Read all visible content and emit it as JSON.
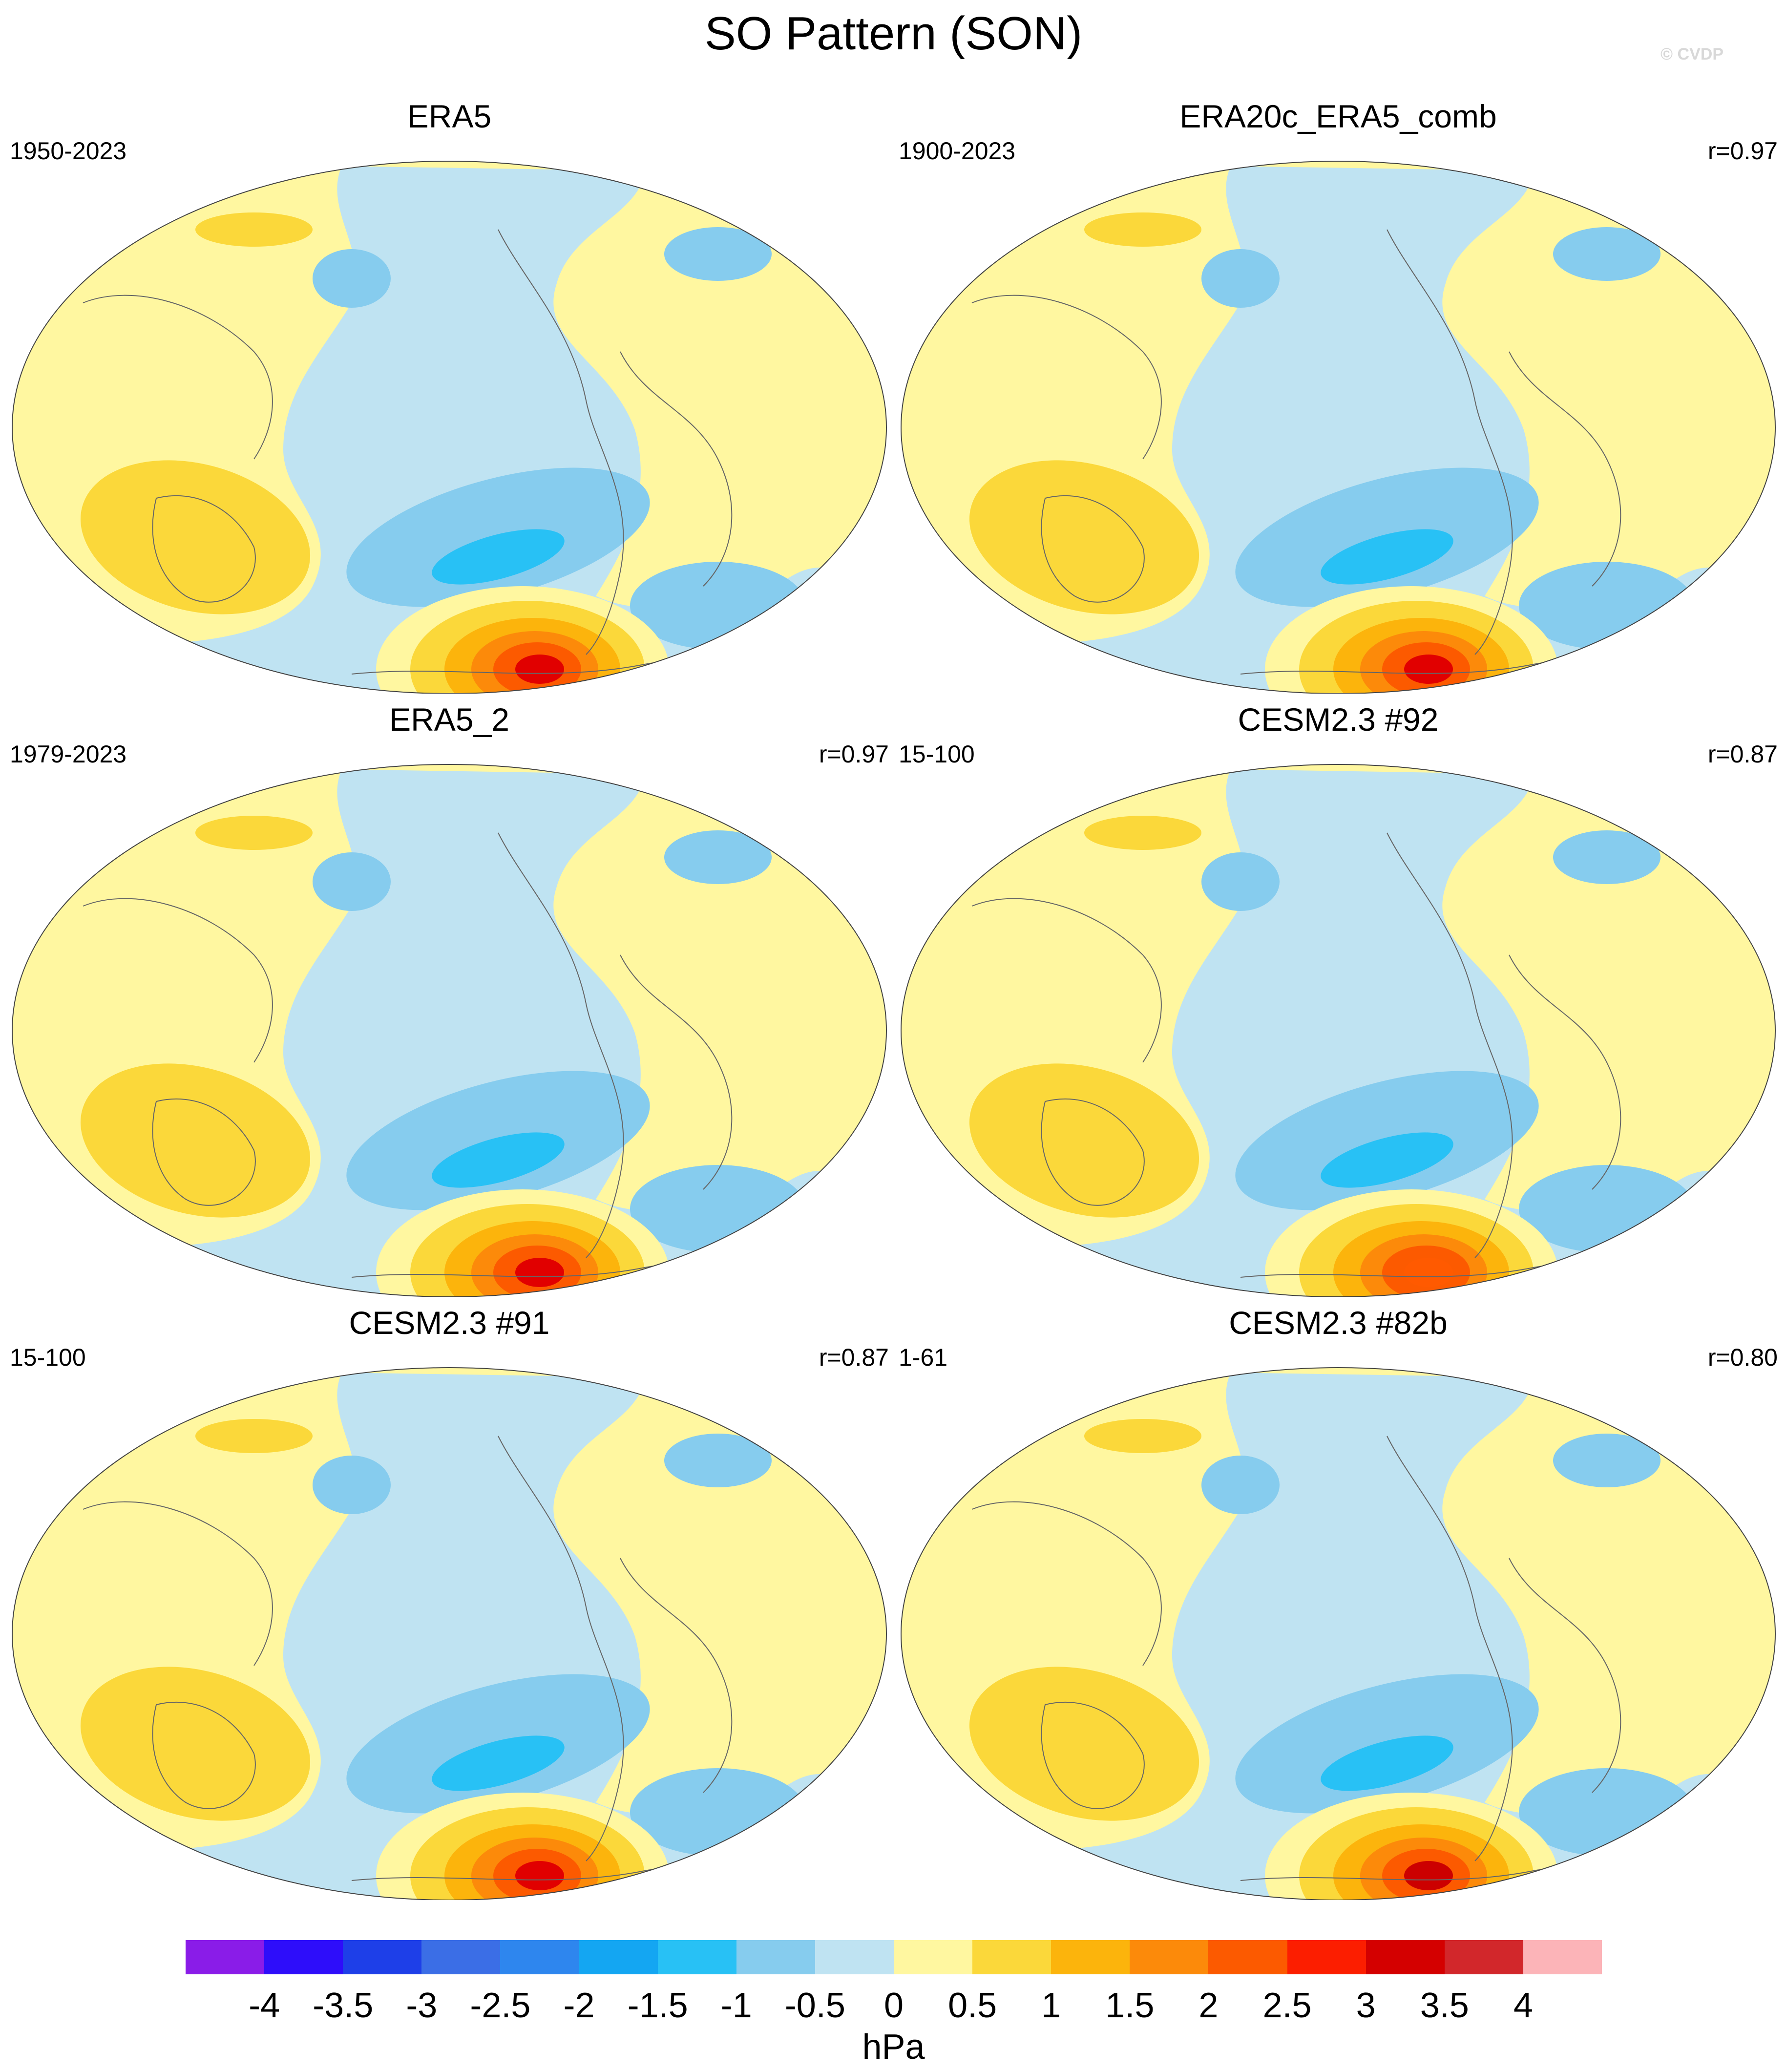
{
  "title": "SO Pattern (SON)",
  "watermark": "© CVDP",
  "panels": [
    {
      "name": "ERA5",
      "years": "1950-2023",
      "corr": "",
      "max_color": "#e10000"
    },
    {
      "name": "ERA20c_ERA5_comb",
      "years": "1900-2023",
      "corr": "r=0.97",
      "max_color": "#e10000"
    },
    {
      "name": "ERA5_2",
      "years": "1979-2023",
      "corr": "r=0.97",
      "max_color": "#e10000"
    },
    {
      "name": "CESM2.3 #92",
      "years": "15-100",
      "corr": "r=0.87",
      "max_color": "#ff5a00"
    },
    {
      "name": "CESM2.3 #91",
      "years": "15-100",
      "corr": "r=0.87",
      "max_color": "#e10000"
    },
    {
      "name": "CESM2.3 #82b",
      "years": "1-61",
      "corr": "r=0.80",
      "max_color": "#cc0000"
    }
  ],
  "colorbar": {
    "unit": "hPa",
    "colors": [
      "#8a1ce8",
      "#2e0dfa",
      "#1e3fe8",
      "#3b6ee6",
      "#2e86ee",
      "#14a6f2",
      "#28c1f5",
      "#86ccee",
      "#bfe3f2",
      "#fff7a0",
      "#fbd83a",
      "#fcb40c",
      "#fc8a0a",
      "#fc5a00",
      "#fc1e00",
      "#d40000",
      "#d2272b",
      "#fcb4b8"
    ],
    "labels": [
      "-4",
      "-3.5",
      "-3",
      "-2.5",
      "-2",
      "-1.5",
      "-1",
      "-0.5",
      "0",
      "0.5",
      "1",
      "1.5",
      "2",
      "2.5",
      "3",
      "3.5",
      "4"
    ]
  },
  "palette": {
    "pos_light": "#fff7a0",
    "pos_1": "#fbd83a",
    "pos_2": "#fcb40c",
    "pos_3": "#fc8a0a",
    "pos_4": "#fc5a00",
    "neg_light": "#bfe3f2",
    "neg_1": "#86ccee",
    "neg_2": "#28c1f5",
    "neg_3": "#14a6f2"
  }
}
